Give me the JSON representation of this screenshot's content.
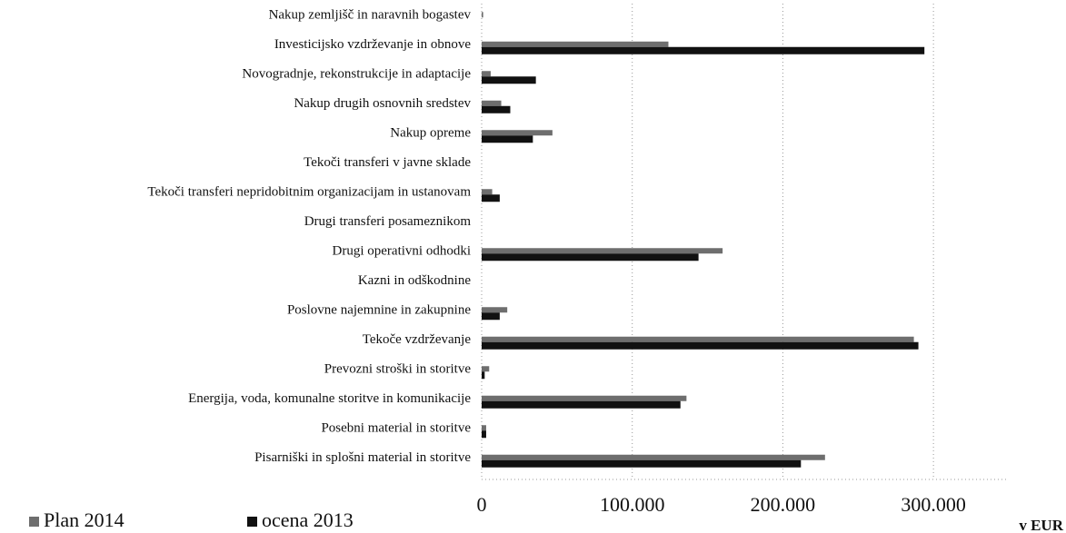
{
  "chart_data": {
    "type": "hbar",
    "categories": [
      "Nakup zemljišč in naravnih bogastev",
      "Investicijsko vzdrževanje in obnove",
      "Novogradnje, rekonstrukcije in adaptacije",
      "Nakup drugih osnovnih sredstev",
      "Nakup opreme",
      "Tekoči transferi v javne sklade",
      "Tekoči transferi nepridobitnim organizacijam in ustanovam",
      "Drugi transferi posameznikom",
      "Drugi operativni odhodki",
      "Kazni in odškodnine",
      "Poslovne najemnine in zakupnine",
      "Tekoče vzdrževanje",
      "Prevozni stroški in storitve",
      "Energija, voda, komunalne storitve in komunikacije",
      "Posebni material in storitve",
      "Pisarniški in splošni material in storitve"
    ],
    "series": [
      {
        "name": "Plan 2014",
        "color": "#6e6e6e",
        "values": [
          1000,
          124000,
          6000,
          13000,
          47000,
          0,
          7000,
          0,
          160000,
          0,
          17000,
          287000,
          5000,
          136000,
          3000,
          228000
        ]
      },
      {
        "name": "ocena 2013",
        "color": "#111111",
        "values": [
          0,
          294000,
          36000,
          19000,
          34000,
          0,
          12000,
          0,
          144000,
          0,
          12000,
          290000,
          2000,
          132000,
          3000,
          212000
        ]
      }
    ],
    "x_label": "v EUR",
    "xlim": [
      0,
      350000
    ],
    "xticks": [
      0,
      {
        "value": 100000,
        "label": "100.000"
      },
      {
        "value": 200000,
        "label": "200.000"
      },
      {
        "value": 300000,
        "label": "300.000"
      }
    ],
    "grid": true,
    "legend": "bottom-left"
  }
}
